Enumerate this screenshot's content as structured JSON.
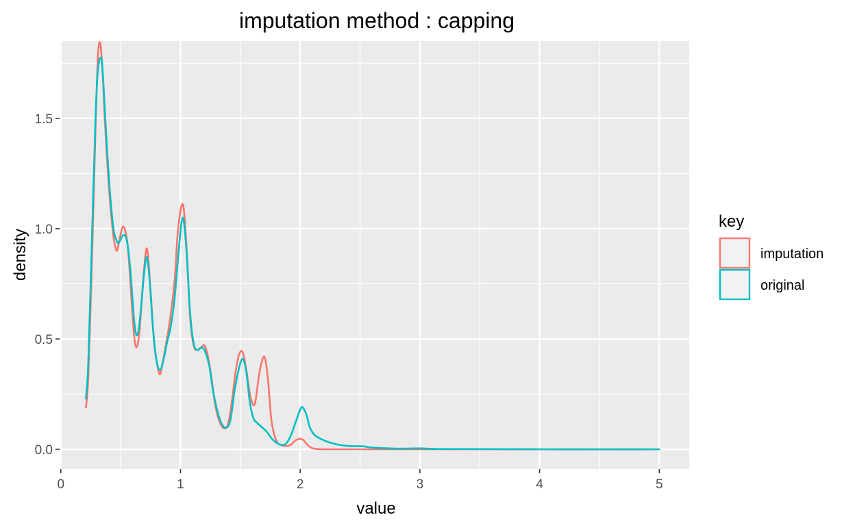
{
  "chart_data": {
    "type": "line",
    "title": "imputation method : capping",
    "xlabel": "value",
    "ylabel": "density",
    "xlim": [
      -0.01,
      5.25
    ],
    "ylim": [
      -0.09,
      1.85
    ],
    "x_ticks": [
      0,
      1,
      2,
      3,
      4,
      5
    ],
    "x_tick_labels": [
      "0",
      "1",
      "2",
      "3",
      "4",
      "5"
    ],
    "y_ticks": [
      0.0,
      0.5,
      1.0,
      1.5
    ],
    "y_tick_labels": [
      "0.0",
      "0.5",
      "1.0",
      "1.5"
    ],
    "grid": true,
    "legend": {
      "title": "key",
      "position": "right",
      "entries": [
        "imputation",
        "original"
      ]
    },
    "series": [
      {
        "name": "imputation",
        "color": "#F8766D",
        "x": [
          0.21,
          0.23,
          0.26,
          0.29,
          0.31,
          0.33,
          0.35,
          0.37,
          0.4,
          0.43,
          0.45,
          0.47,
          0.49,
          0.52,
          0.55,
          0.57,
          0.6,
          0.62,
          0.64,
          0.66,
          0.69,
          0.72,
          0.75,
          0.78,
          0.81,
          0.83,
          0.85,
          0.88,
          0.91,
          0.95,
          0.98,
          1.02,
          1.05,
          1.08,
          1.11,
          1.14,
          1.17,
          1.2,
          1.23,
          1.26,
          1.29,
          1.33,
          1.37,
          1.4,
          1.43,
          1.46,
          1.49,
          1.52,
          1.55,
          1.58,
          1.61,
          1.63,
          1.66,
          1.7,
          1.73,
          1.76,
          1.8,
          1.84,
          1.88,
          1.92,
          1.96,
          2.0,
          2.03,
          2.06,
          2.1,
          2.15,
          2.2,
          2.3,
          2.5,
          3.0,
          4.0,
          5.0
        ],
        "y": [
          0.19,
          0.33,
          0.85,
          1.45,
          1.78,
          1.84,
          1.7,
          1.47,
          1.2,
          1.01,
          0.93,
          0.9,
          0.95,
          1.01,
          0.96,
          0.85,
          0.6,
          0.48,
          0.47,
          0.55,
          0.78,
          0.91,
          0.72,
          0.48,
          0.37,
          0.34,
          0.39,
          0.48,
          0.58,
          0.76,
          1.0,
          1.11,
          0.92,
          0.6,
          0.47,
          0.45,
          0.46,
          0.47,
          0.42,
          0.32,
          0.2,
          0.12,
          0.095,
          0.12,
          0.22,
          0.35,
          0.43,
          0.44,
          0.36,
          0.25,
          0.2,
          0.23,
          0.35,
          0.42,
          0.32,
          0.13,
          0.04,
          0.02,
          0.015,
          0.02,
          0.04,
          0.048,
          0.04,
          0.02,
          0.005,
          0.001,
          0.0,
          0.0,
          0.0,
          0.0,
          0.0,
          0.0
        ]
      },
      {
        "name": "original",
        "color": "#00BFC4",
        "x": [
          0.21,
          0.23,
          0.26,
          0.29,
          0.31,
          0.34,
          0.36,
          0.38,
          0.41,
          0.44,
          0.47,
          0.49,
          0.52,
          0.55,
          0.58,
          0.61,
          0.63,
          0.65,
          0.67,
          0.7,
          0.72,
          0.74,
          0.77,
          0.8,
          0.83,
          0.86,
          0.89,
          0.92,
          0.95,
          0.99,
          1.02,
          1.05,
          1.08,
          1.11,
          1.14,
          1.17,
          1.2,
          1.24,
          1.27,
          1.31,
          1.35,
          1.39,
          1.42,
          1.45,
          1.49,
          1.52,
          1.55,
          1.58,
          1.61,
          1.64,
          1.68,
          1.72,
          1.76,
          1.8,
          1.84,
          1.88,
          1.92,
          1.96,
          2.0,
          2.02,
          2.05,
          2.08,
          2.12,
          2.18,
          2.25,
          2.35,
          2.45,
          2.52,
          2.6,
          2.8,
          3.0,
          3.2,
          4.0,
          5.0
        ],
        "y": [
          0.23,
          0.4,
          0.95,
          1.5,
          1.72,
          1.77,
          1.62,
          1.42,
          1.17,
          1.0,
          0.94,
          0.94,
          0.97,
          0.95,
          0.82,
          0.6,
          0.52,
          0.54,
          0.64,
          0.82,
          0.87,
          0.78,
          0.55,
          0.4,
          0.36,
          0.41,
          0.49,
          0.56,
          0.68,
          0.93,
          1.05,
          0.9,
          0.62,
          0.48,
          0.45,
          0.46,
          0.45,
          0.38,
          0.27,
          0.17,
          0.11,
          0.1,
          0.14,
          0.26,
          0.37,
          0.41,
          0.35,
          0.21,
          0.14,
          0.12,
          0.1,
          0.08,
          0.05,
          0.03,
          0.02,
          0.025,
          0.06,
          0.12,
          0.18,
          0.19,
          0.16,
          0.1,
          0.065,
          0.045,
          0.03,
          0.018,
          0.014,
          0.014,
          0.008,
          0.003,
          0.004,
          0.001,
          0.0,
          0.0
        ]
      }
    ]
  }
}
